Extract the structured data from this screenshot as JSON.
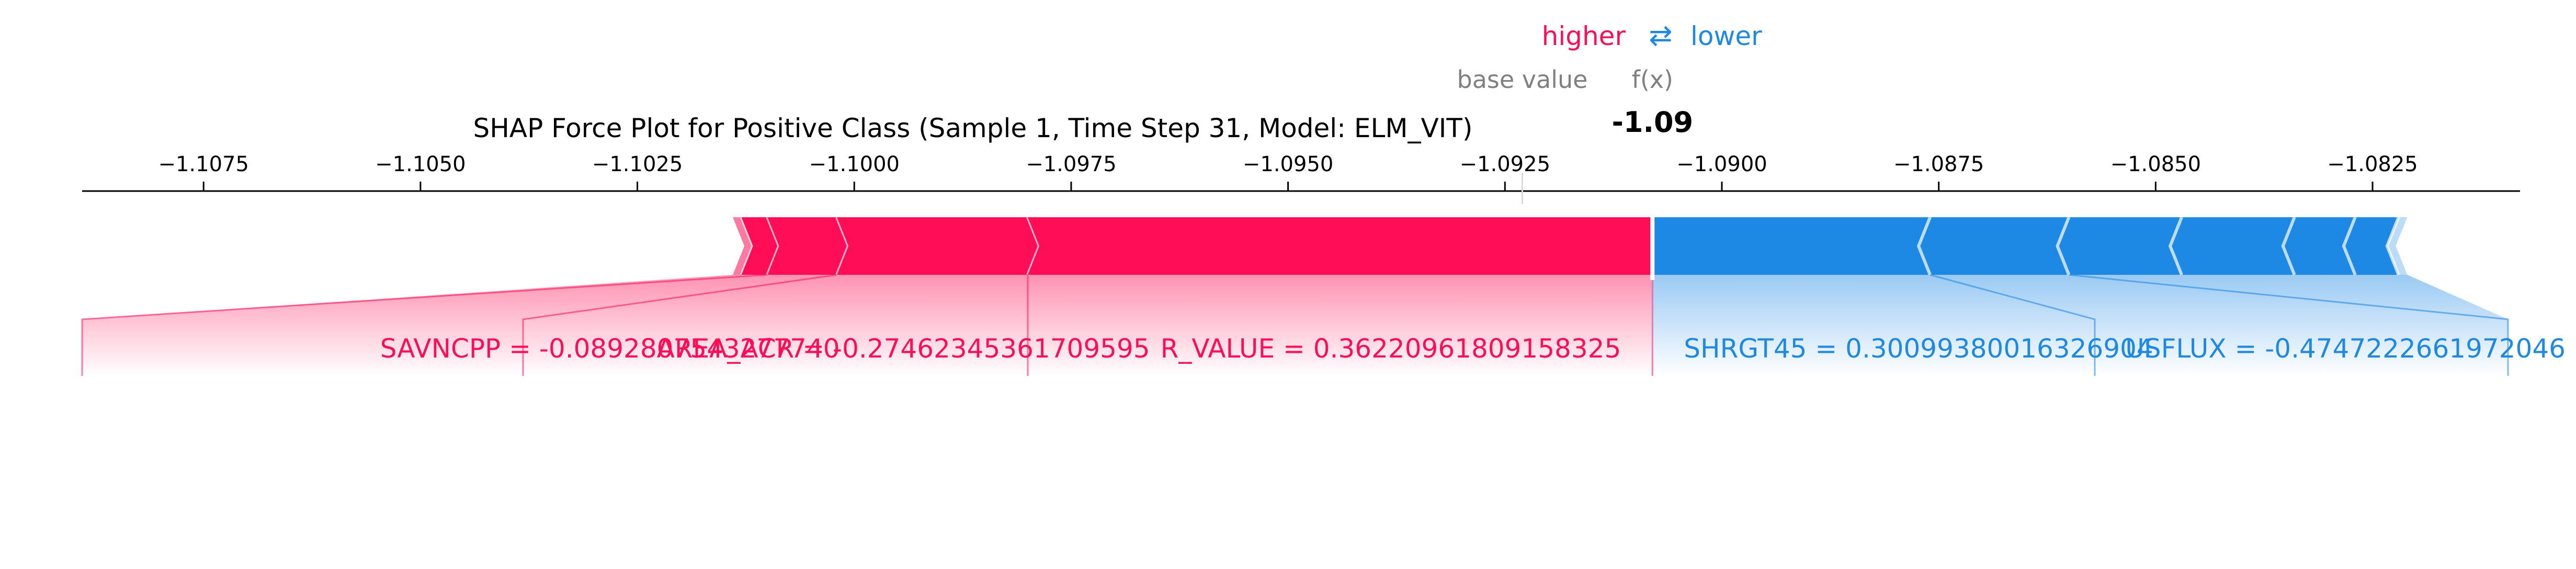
{
  "chart_data": {
    "type": "force",
    "title": "SHAP Force Plot for Positive Class (Sample 1, Time Step 31, Model: ELM_VIT)",
    "legend": {
      "higher": "higher",
      "lower": "lower",
      "arrows": "⇄"
    },
    "base_value_label": "base value",
    "fx_label": "f(x)",
    "output_value_label": "-1.09",
    "base_value": -1.0923,
    "output_value": -1.0908,
    "xlim": [
      -1.1089,
      -1.0808
    ],
    "ticks": [
      {
        "value": -1.1075,
        "label": "−1.1075"
      },
      {
        "value": -1.105,
        "label": "−1.1050"
      },
      {
        "value": -1.1025,
        "label": "−1.1025"
      },
      {
        "value": -1.1,
        "label": "−1.1000"
      },
      {
        "value": -1.0975,
        "label": "−1.0975"
      },
      {
        "value": -1.095,
        "label": "−1.0950"
      },
      {
        "value": -1.0925,
        "label": "−1.0925"
      },
      {
        "value": -1.09,
        "label": "−1.0900"
      },
      {
        "value": -1.0875,
        "label": "−1.0875"
      },
      {
        "value": -1.085,
        "label": "−1.0850"
      },
      {
        "value": -1.0825,
        "label": "−1.0825"
      }
    ],
    "positive_features": [
      {
        "start": -1.098,
        "end": -1.0908,
        "label": "R_VALUE = 0.36220961809158325"
      },
      {
        "start": -1.1002,
        "end": -1.098,
        "label": "AREA_ACR = -0.27462345361709595"
      },
      {
        "start": -1.101,
        "end": -1.1002,
        "label": "SAVNCPP = -0.0892807543277740"
      },
      {
        "start": -1.1013,
        "end": -1.101,
        "label": ""
      },
      {
        "start": -1.1014,
        "end": -1.1013,
        "label": ""
      }
    ],
    "negative_features": [
      {
        "start": -1.0908,
        "end": -1.0876,
        "label": "SHRGT45 = 0.30099380016326904"
      },
      {
        "start": -1.0876,
        "end": -1.086,
        "label": "USFLUX = -0.4747222661972046"
      },
      {
        "start": -1.086,
        "end": -1.0847,
        "label": ""
      },
      {
        "start": -1.0847,
        "end": -1.0834,
        "label": ""
      },
      {
        "start": -1.0834,
        "end": -1.0827,
        "label": ""
      },
      {
        "start": -1.0827,
        "end": -1.0822,
        "label": ""
      },
      {
        "start": -1.0822,
        "end": -1.0821,
        "label": ""
      }
    ],
    "colors": {
      "positive": "#ff0d57",
      "negative": "#1e88e5",
      "positive_light": "#ff7aa3",
      "negative_light": "#7fb9ee",
      "axis": "#000000",
      "muted": "#808080"
    }
  }
}
